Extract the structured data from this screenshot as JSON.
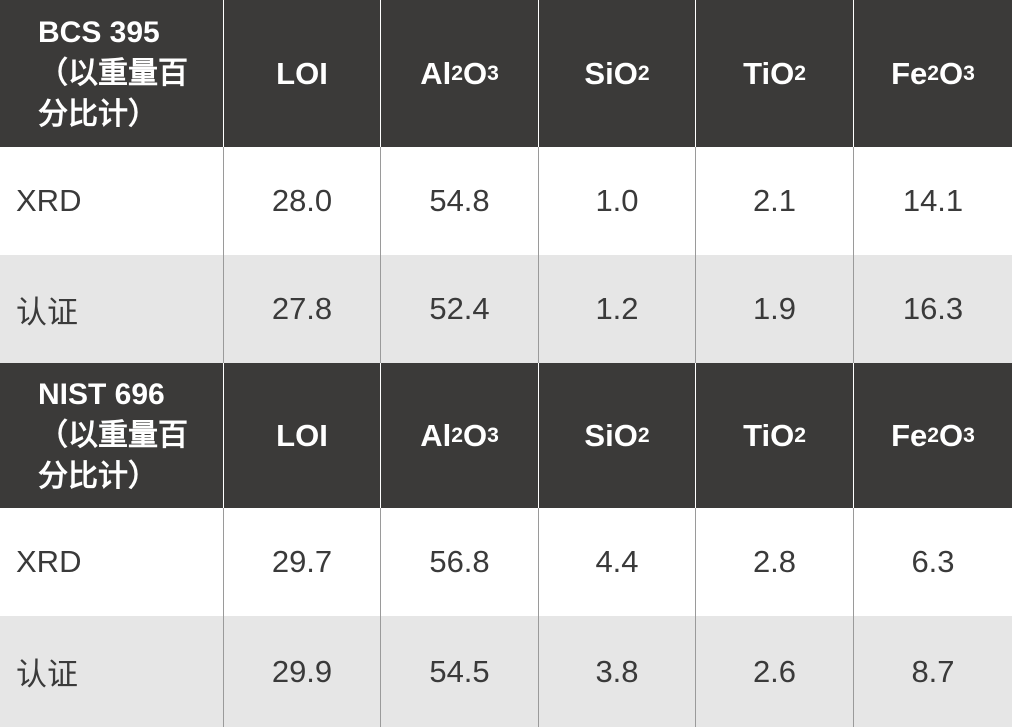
{
  "table": {
    "columns": [
      "LOI",
      "Al2O3",
      "SiO2",
      "TiO2",
      "Fe2O3"
    ],
    "header_cells": [
      {
        "text": "LOI"
      },
      {
        "base": [
          "Al",
          "O"
        ],
        "subs": [
          "2",
          "3"
        ]
      },
      {
        "base": [
          "SiO"
        ],
        "subs": [
          "2"
        ]
      },
      {
        "base": [
          "TiO"
        ],
        "subs": [
          "2"
        ]
      },
      {
        "base": [
          "Fe",
          "O"
        ],
        "subs": [
          "2",
          "3"
        ]
      }
    ],
    "sections": [
      {
        "title": "BCS 395（以重量百分比计）",
        "rows": [
          {
            "label": "XRD",
            "values": [
              "28.0",
              "54.8",
              "1.0",
              "2.1",
              "14.1"
            ]
          },
          {
            "label": "认证",
            "values": [
              "27.8",
              "52.4",
              "1.2",
              "1.9",
              "16.3"
            ]
          }
        ]
      },
      {
        "title": "NIST 696（以重量百分比计）",
        "rows": [
          {
            "label": "XRD",
            "values": [
              "29.7",
              "56.8",
              "4.4",
              "2.8",
              "6.3"
            ]
          },
          {
            "label": "认证",
            "values": [
              "29.9",
              "54.5",
              "3.8",
              "2.6",
              "8.7"
            ]
          }
        ]
      }
    ]
  },
  "colors": {
    "header_bg": "#3b3a39",
    "header_text": "#ffffff",
    "row_white": "#ffffff",
    "row_grey": "#e6e6e6",
    "body_text": "#3a3a3a",
    "divider": "#9a9a9a"
  }
}
